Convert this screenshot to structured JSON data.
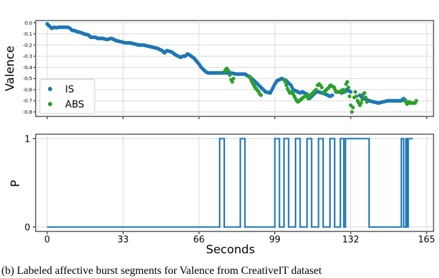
{
  "caption": "(b) Labeled affective burst segments for Valence from CreativeIT dataset",
  "chart_data": [
    {
      "type": "scatter",
      "ylabel": "Valence",
      "xlim": [
        -5,
        168
      ],
      "ylim": [
        -0.84,
        0.02
      ],
      "yticks": [
        0.0,
        -0.1,
        -0.2,
        -0.3,
        -0.4,
        -0.5,
        -0.6,
        -0.7,
        -0.8
      ],
      "ytick_labels": [
        "0.0",
        "-0.1",
        "-0.2",
        "-0.3",
        "-0.4",
        "-0.5",
        "-0.6",
        "-0.7",
        "-0.8"
      ],
      "legend_position": "lower-left",
      "grid": true,
      "series": [
        {
          "name": "IS",
          "color": "#1f77b4",
          "points": [
            [
              0,
              -0.01
            ],
            [
              1,
              -0.03
            ],
            [
              2,
              -0.05
            ],
            [
              3,
              -0.04
            ],
            [
              4,
              -0.045
            ],
            [
              5,
              -0.04
            ],
            [
              6,
              -0.04
            ],
            [
              7,
              -0.04
            ],
            [
              9,
              -0.04
            ],
            [
              10,
              -0.05
            ],
            [
              11,
              -0.07
            ],
            [
              12,
              -0.07
            ],
            [
              13,
              -0.08
            ],
            [
              15,
              -0.09
            ],
            [
              16,
              -0.1
            ],
            [
              18,
              -0.11
            ],
            [
              19,
              -0.13
            ],
            [
              21,
              -0.13
            ],
            [
              22,
              -0.14
            ],
            [
              24,
              -0.14
            ],
            [
              26,
              -0.15
            ],
            [
              28,
              -0.14
            ],
            [
              30,
              -0.16
            ],
            [
              32,
              -0.17
            ],
            [
              34,
              -0.18
            ],
            [
              36,
              -0.18
            ],
            [
              38,
              -0.19
            ],
            [
              40,
              -0.2
            ],
            [
              42,
              -0.2
            ],
            [
              44,
              -0.21
            ],
            [
              46,
              -0.22
            ],
            [
              48,
              -0.23
            ],
            [
              50,
              -0.25
            ],
            [
              51,
              -0.27
            ],
            [
              52,
              -0.25
            ],
            [
              54,
              -0.26
            ],
            [
              56,
              -0.29
            ],
            [
              58,
              -0.31
            ],
            [
              59,
              -0.3
            ],
            [
              60,
              -0.3
            ],
            [
              61,
              -0.28
            ],
            [
              62,
              -0.29
            ],
            [
              64,
              -0.32
            ],
            [
              66,
              -0.37
            ],
            [
              67,
              -0.4
            ],
            [
              68,
              -0.42
            ],
            [
              69,
              -0.44
            ],
            [
              70,
              -0.45
            ],
            [
              71,
              -0.45
            ],
            [
              72,
              -0.45
            ],
            [
              74,
              -0.45
            ],
            [
              76,
              -0.45
            ],
            [
              78,
              -0.45
            ],
            [
              80,
              -0.45
            ],
            [
              82,
              -0.46
            ],
            [
              84,
              -0.46
            ],
            [
              86,
              -0.46
            ],
            [
              89,
              -0.5
            ],
            [
              90,
              -0.52
            ],
            [
              92,
              -0.56
            ],
            [
              94,
              -0.6
            ],
            [
              95,
              -0.62
            ],
            [
              97,
              -0.63
            ],
            [
              98,
              -0.59
            ],
            [
              99,
              -0.55
            ],
            [
              100,
              -0.52
            ],
            [
              101,
              -0.51
            ],
            [
              102,
              -0.5
            ],
            [
              103,
              -0.51
            ],
            [
              104,
              -0.52
            ],
            [
              106,
              -0.56
            ],
            [
              107,
              -0.6
            ],
            [
              109,
              -0.62
            ],
            [
              110,
              -0.63
            ],
            [
              111,
              -0.62
            ],
            [
              113,
              -0.64
            ],
            [
              114,
              -0.68
            ],
            [
              115,
              -0.66
            ],
            [
              116,
              -0.64
            ],
            [
              117,
              -0.62
            ],
            [
              118,
              -0.62
            ],
            [
              121,
              -0.64
            ],
            [
              122,
              -0.65
            ],
            [
              123,
              -0.66
            ],
            [
              124,
              -0.65
            ],
            [
              128,
              -0.63
            ],
            [
              129,
              -0.62
            ],
            [
              130,
              -0.6
            ],
            [
              131,
              -0.61
            ],
            [
              132,
              -0.62
            ],
            [
              136,
              -0.65
            ],
            [
              137,
              -0.67
            ],
            [
              138,
              -0.68
            ],
            [
              140,
              -0.7
            ],
            [
              142,
              -0.71
            ],
            [
              144,
              -0.72
            ],
            [
              146,
              -0.71
            ],
            [
              148,
              -0.7
            ],
            [
              150,
              -0.7
            ],
            [
              152,
              -0.7
            ],
            [
              154,
              -0.7
            ],
            [
              155,
              -0.68
            ],
            [
              156,
              -0.7
            ]
          ]
        },
        {
          "name": "ABS",
          "color": "#2ca02c",
          "points": [
            [
              77.0,
              -0.44
            ],
            [
              77.6,
              -0.42
            ],
            [
              78.2,
              -0.41
            ],
            [
              78.8,
              -0.43
            ],
            [
              79.4,
              -0.47
            ],
            [
              80.0,
              -0.51
            ],
            [
              80.5,
              -0.53
            ],
            [
              81.0,
              -0.5
            ],
            [
              88.0,
              -0.48
            ],
            [
              88.8,
              -0.52
            ],
            [
              89.6,
              -0.55
            ],
            [
              90.4,
              -0.58
            ],
            [
              91.2,
              -0.6
            ],
            [
              92.0,
              -0.62
            ],
            [
              92.5,
              -0.64
            ],
            [
              93.0,
              -0.65
            ],
            [
              103.0,
              -0.51
            ],
            [
              103.5,
              -0.53
            ],
            [
              104.0,
              -0.56
            ],
            [
              104.5,
              -0.59
            ],
            [
              105.0,
              -0.61
            ],
            [
              105.5,
              -0.63
            ],
            [
              106.5,
              -0.62
            ],
            [
              107.0,
              -0.64
            ],
            [
              107.5,
              -0.66
            ],
            [
              108.0,
              -0.68
            ],
            [
              108.5,
              -0.7
            ],
            [
              109.0,
              -0.71
            ],
            [
              112.0,
              -0.66
            ],
            [
              112.5,
              -0.65
            ],
            [
              113.0,
              -0.66
            ],
            [
              113.5,
              -0.68
            ],
            [
              114.0,
              -0.66
            ],
            [
              114.5,
              -0.65
            ],
            [
              117.0,
              -0.6
            ],
            [
              117.6,
              -0.56
            ],
            [
              118.2,
              -0.55
            ],
            [
              118.8,
              -0.56
            ],
            [
              119.4,
              -0.58
            ],
            [
              120.0,
              -0.63
            ],
            [
              122.5,
              -0.58
            ],
            [
              123.2,
              -0.56
            ],
            [
              124.0,
              -0.57
            ],
            [
              124.8,
              -0.58
            ],
            [
              125.5,
              -0.62
            ],
            [
              127.5,
              -0.62
            ],
            [
              128.0,
              -0.61
            ],
            [
              128.5,
              -0.6
            ],
            [
              129.0,
              -0.61
            ],
            [
              129.5,
              -0.62
            ],
            [
              130.0,
              -0.55
            ],
            [
              130.5,
              -0.53
            ],
            [
              131.0,
              -0.58
            ],
            [
              131.5,
              -0.66
            ],
            [
              132.0,
              -0.74
            ],
            [
              132.5,
              -0.8
            ],
            [
              133.0,
              -0.76
            ],
            [
              133.5,
              -0.67
            ],
            [
              134.0,
              -0.62
            ],
            [
              135.0,
              -0.7
            ],
            [
              135.5,
              -0.72
            ],
            [
              136.0,
              -0.74
            ],
            [
              136.5,
              -0.72
            ],
            [
              137.0,
              -0.69
            ],
            [
              137.5,
              -0.64
            ],
            [
              138.0,
              -0.63
            ],
            [
              138.5,
              -0.67
            ],
            [
              139.0,
              -0.71
            ],
            [
              155.5,
              -0.7
            ],
            [
              156.0,
              -0.71
            ],
            [
              156.5,
              -0.73
            ],
            [
              157.0,
              -0.72
            ],
            [
              157.5,
              -0.71
            ],
            [
              158.0,
              -0.72
            ],
            [
              159.0,
              -0.72
            ],
            [
              160.0,
              -0.72
            ],
            [
              160.5,
              -0.7
            ]
          ]
        }
      ]
    },
    {
      "type": "line",
      "xlabel": "Seconds",
      "ylabel": "P",
      "xlim": [
        -5,
        168
      ],
      "ylim": [
        -0.05,
        1.05
      ],
      "xticks": [
        0,
        33,
        66,
        99,
        132,
        165
      ],
      "xtick_labels": [
        "0",
        "33",
        "66",
        "99",
        "132",
        "165"
      ],
      "yticks": [
        0,
        1
      ],
      "ytick_labels": [
        "0",
        "1"
      ],
      "grid": true,
      "series": [
        {
          "color": "#1f77b4",
          "steps": [
            [
              0,
              0
            ],
            [
              75,
              1
            ],
            [
              77,
              0
            ],
            [
              84,
              1
            ],
            [
              86,
              0
            ],
            [
              99,
              1
            ],
            [
              101,
              0
            ],
            [
              103,
              1
            ],
            [
              105,
              0
            ],
            [
              108,
              1
            ],
            [
              110,
              0
            ],
            [
              113,
              1
            ],
            [
              115,
              0
            ],
            [
              118,
              1
            ],
            [
              120,
              0
            ],
            [
              123,
              1
            ],
            [
              125,
              0
            ],
            [
              127.5,
              1
            ],
            [
              129,
              0
            ],
            [
              129.7,
              1
            ],
            [
              140,
              0
            ],
            [
              154,
              1
            ],
            [
              155,
              0
            ],
            [
              156,
              1
            ],
            [
              156.5,
              0
            ],
            [
              157,
              1
            ],
            [
              159,
              1
            ]
          ]
        }
      ]
    }
  ]
}
